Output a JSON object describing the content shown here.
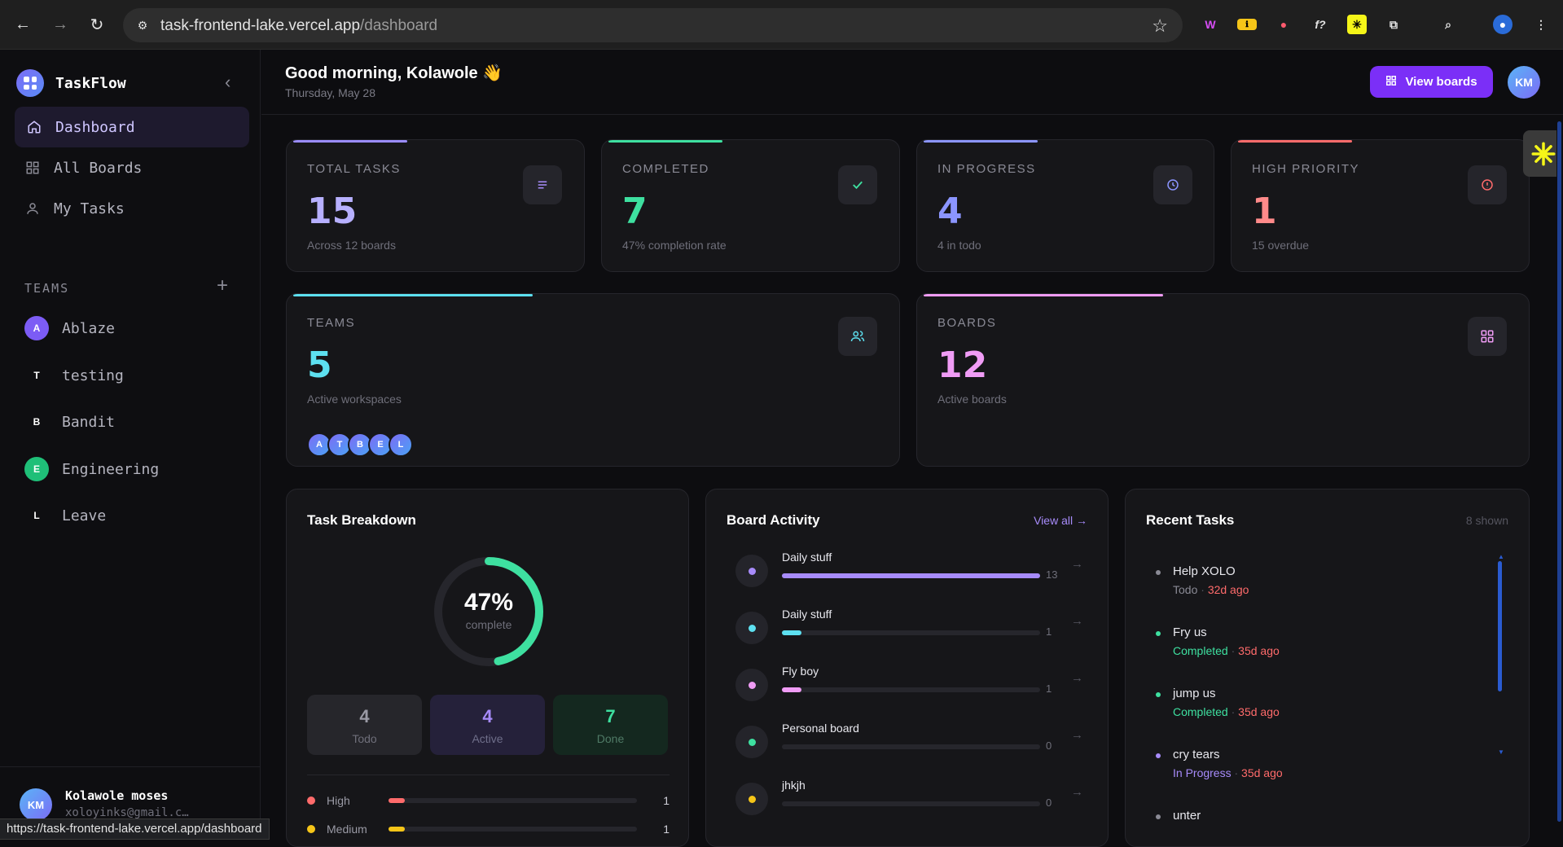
{
  "browser": {
    "url_host": "task-frontend-lake.vercel.app",
    "url_path": "/dashboard",
    "status_url": "https://task-frontend-lake.vercel.app/dashboard"
  },
  "sidebar": {
    "brand": "TaskFlow",
    "nav": [
      {
        "label": "Dashboard",
        "icon": "home-icon",
        "active": true
      },
      {
        "label": "All Boards",
        "icon": "grid-icon",
        "active": false
      },
      {
        "label": "My Tasks",
        "icon": "user-icon",
        "active": false
      }
    ],
    "teams_label": "TEAMS",
    "teams": [
      {
        "initial": "A",
        "name": "Ablaze",
        "color": "#7c5cf5"
      },
      {
        "initial": "T",
        "name": "testing",
        "color": "transparent"
      },
      {
        "initial": "B",
        "name": "Bandit",
        "color": "transparent"
      },
      {
        "initial": "E",
        "name": "Engineering",
        "color": "#1fbf78"
      },
      {
        "initial": "L",
        "name": "Leave",
        "color": "transparent"
      }
    ],
    "user": {
      "initials": "KM",
      "name": "Kolawole moses",
      "email": "xoloyinks@gmail.c…"
    }
  },
  "header": {
    "greeting": "Good morning, Kolawole 👋",
    "date": "Thursday, May 28",
    "view_boards": "View boards",
    "avatar": "KM"
  },
  "stats": {
    "total": {
      "label": "TOTAL TASKS",
      "value": "15",
      "sub": "Across 12 boards",
      "color": "#b7b0ff"
    },
    "completed": {
      "label": "COMPLETED",
      "value": "7",
      "sub": "47% completion rate",
      "color": "#3ee0a0"
    },
    "in_progress": {
      "label": "IN PROGRESS",
      "value": "4",
      "sub": "4 in todo",
      "color": "#8b95ff"
    },
    "high_priority": {
      "label": "HIGH PRIORITY",
      "value": "1",
      "sub": "15 overdue",
      "color": "#ff8a8a"
    },
    "teams": {
      "label": "TEAMS",
      "value": "5",
      "sub": "Active workspaces",
      "color": "#5de0f0",
      "initials": [
        "A",
        "T",
        "B",
        "E",
        "L"
      ]
    },
    "boards": {
      "label": "BOARDS",
      "value": "12",
      "sub": "Active boards",
      "color": "#f09cf5"
    }
  },
  "breakdown": {
    "title": "Task Breakdown",
    "percent": "47%",
    "percent_value": 0.47,
    "complete_label": "complete",
    "counts": [
      {
        "value": "4",
        "label": "Todo"
      },
      {
        "value": "4",
        "label": "Active"
      },
      {
        "value": "7",
        "label": "Done"
      }
    ],
    "priorities": [
      {
        "label": "High",
        "count": "1",
        "fraction": 0.067,
        "color": "#ff6b6b"
      },
      {
        "label": "Medium",
        "count": "1",
        "fraction": 0.067,
        "color": "#f5c518"
      }
    ]
  },
  "activity": {
    "title": "Board Activity",
    "view_all": "View all →",
    "boards": [
      {
        "name": "Daily stuff",
        "count": "13",
        "fraction": 1.0,
        "color": "#a78bfa"
      },
      {
        "name": "Daily stuff",
        "count": "1",
        "fraction": 0.077,
        "color": "#5de0f0"
      },
      {
        "name": "Fly boy",
        "count": "1",
        "fraction": 0.077,
        "color": "#f09cf5"
      },
      {
        "name": "Personal board",
        "count": "0",
        "fraction": 0,
        "color": "#3ee0a0"
      },
      {
        "name": "jhkjh",
        "count": "0",
        "fraction": 0,
        "color": "#f5c518"
      }
    ]
  },
  "recent": {
    "title": "Recent Tasks",
    "shown": "8 shown",
    "tasks": [
      {
        "name": "Help XOLO",
        "status": "Todo",
        "age": "32d ago",
        "status_color": "#8a8a95",
        "dot": "#8a8a95"
      },
      {
        "name": "Fry us",
        "status": "Completed",
        "age": "35d ago",
        "status_color": "#3ee0a0",
        "dot": "#3ee0a0"
      },
      {
        "name": "jump us",
        "status": "Completed",
        "age": "35d ago",
        "status_color": "#3ee0a0",
        "dot": "#3ee0a0"
      },
      {
        "name": "cry tears",
        "status": "In Progress",
        "age": "35d ago",
        "status_color": "#a78bfa",
        "dot": "#a78bfa"
      },
      {
        "name": "unter",
        "status": "",
        "age": "",
        "status_color": "#8a8a95",
        "dot": "#8a8a95"
      }
    ]
  }
}
